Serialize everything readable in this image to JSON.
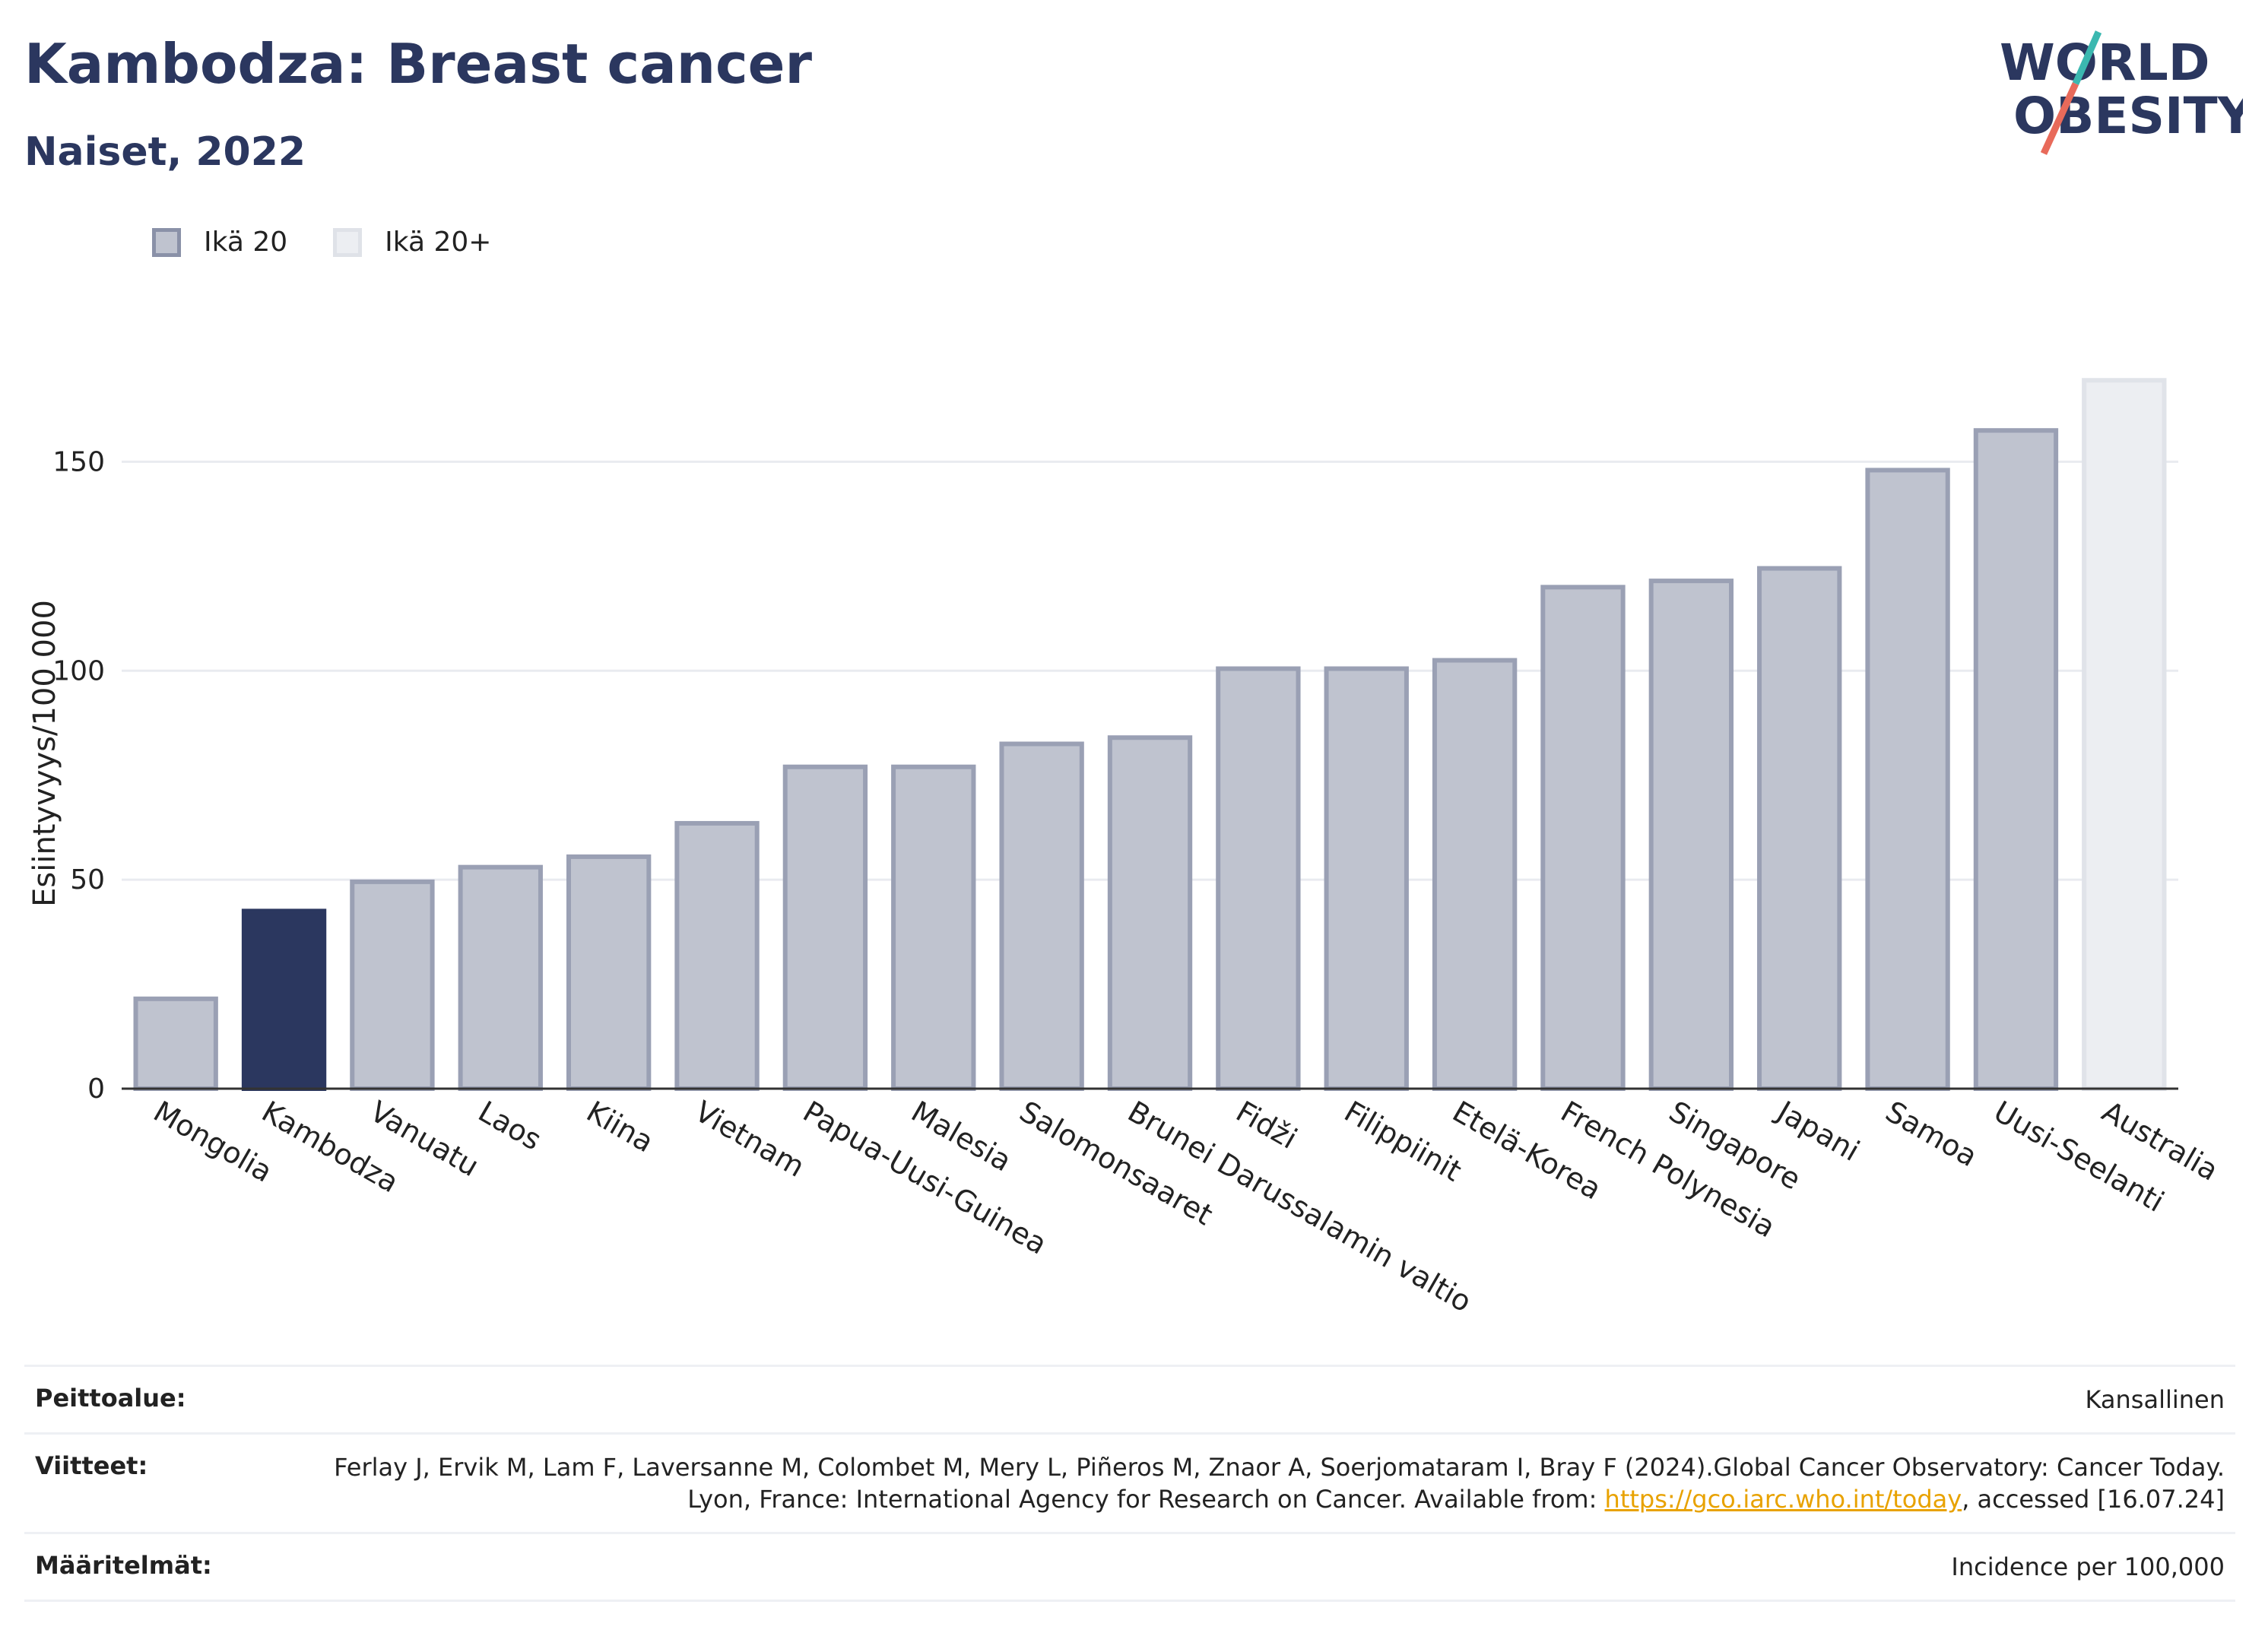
{
  "header": {
    "title": "Kambodza: Breast cancer",
    "subtitle": "Naiset, 2022",
    "logo_line1": "WORLD",
    "logo_line2": "OBESITY"
  },
  "legend": {
    "items": [
      {
        "label": "Ikä 20",
        "color": "#bfc3cf"
      },
      {
        "label": "Ikä 20+",
        "color": "#eceef2"
      }
    ]
  },
  "chart_data": {
    "type": "bar",
    "ylabel": "Esiintyvyys/100 000",
    "ylim": [
      0,
      175
    ],
    "yticks": [
      0,
      50,
      100,
      150
    ],
    "grid": true,
    "legend_position": "top-left",
    "highlight_color": "#2b375f",
    "categories": [
      "Mongolia",
      "Kambodza",
      "Vanuatu",
      "Laos",
      "Kiina",
      "Vietnam",
      "Papua-Uusi-Guinea",
      "Malesia",
      "Salomonsaaret",
      "Brunei Darussalamin valtio",
      "Fidži",
      "Filippiinit",
      "Etelä-Korea",
      "French Polynesia",
      "Singapore",
      "Japani",
      "Samoa",
      "Uusi-Seelanti",
      "Australia"
    ],
    "values": [
      21.5,
      42.5,
      49.5,
      53,
      55.5,
      63.5,
      77,
      77,
      82.5,
      84,
      100.5,
      100.5,
      102.5,
      120,
      121.5,
      124.5,
      148,
      157.5,
      169.5
    ],
    "series_group": [
      "Ikä 20",
      "Ikä 20",
      "Ikä 20",
      "Ikä 20",
      "Ikä 20",
      "Ikä 20",
      "Ikä 20",
      "Ikä 20",
      "Ikä 20",
      "Ikä 20",
      "Ikä 20",
      "Ikä 20",
      "Ikä 20",
      "Ikä 20",
      "Ikä 20",
      "Ikä 20",
      "Ikä 20",
      "Ikä 20",
      "Ikä 20+"
    ],
    "highlight": "Kambodza"
  },
  "meta": {
    "coverage_label": "Peittoalue:",
    "coverage_value": "Kansallinen",
    "refs_label": "Viitteet:",
    "refs_text_1": "Ferlay J, Ervik M, Lam F, Laversanne M, Colombet M, Mery L, Piñeros M, Znaor A, Soerjomataram I, Bray F (2024).Global Cancer Observatory: Cancer Today. Lyon, France: International Agency for Research on Cancer. Available from: ",
    "refs_link": "https://gco.iarc.who.int/today",
    "refs_text_2": ", accessed [16.07.24]",
    "defs_label": "Määritelmät:",
    "defs_value": "Incidence per 100,000"
  }
}
